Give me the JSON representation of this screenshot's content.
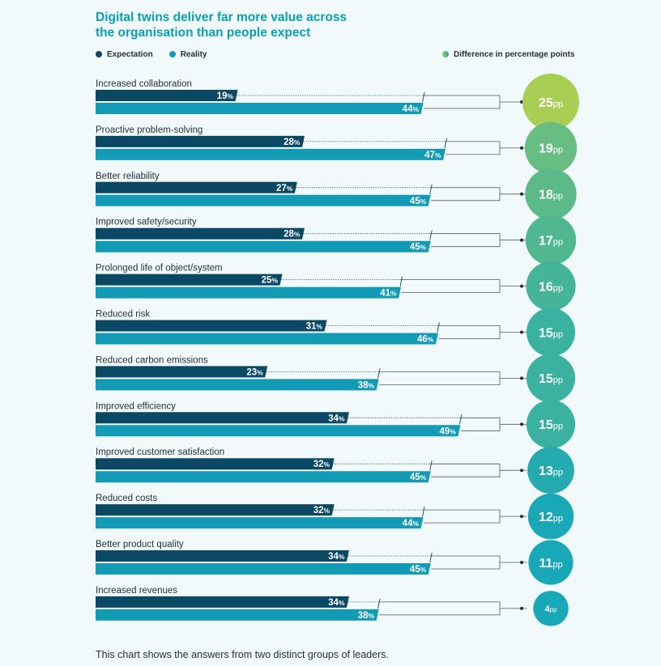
{
  "title_line1": "Digital twins deliver far more value across",
  "title_line2": "the organisation than people expect",
  "legend": {
    "expectation": "Expectation",
    "reality": "Reality",
    "difference": "Difference in percentage points"
  },
  "footnote": "This chart shows the answers from two distinct groups of leaders.",
  "colors": {
    "expectation": "#0b4863",
    "reality": "#139bb5",
    "bubble_high": "#a8cf54",
    "bubble_low": "#19a8b8"
  },
  "chart_data": {
    "type": "bar",
    "title": "Digital twins deliver far more value across the organisation than people expect",
    "unit": "%",
    "diff_unit": "pp",
    "categories": [
      "Increased collaboration",
      "Proactive problem-solving",
      "Better reliability",
      "Improved safety/security",
      "Prolonged life of object/system",
      "Reduced risk",
      "Reduced carbon emissions",
      "Improved efficiency",
      "Improved customer satisfaction",
      "Reduced costs",
      "Better product quality",
      "Increased revenues"
    ],
    "series": [
      {
        "name": "Expectation",
        "values": [
          19,
          28,
          27,
          28,
          25,
          31,
          23,
          34,
          32,
          32,
          34,
          34
        ]
      },
      {
        "name": "Reality",
        "values": [
          44,
          47,
          45,
          45,
          41,
          46,
          38,
          49,
          45,
          44,
          45,
          38
        ]
      }
    ],
    "difference": [
      25,
      19,
      18,
      17,
      16,
      15,
      15,
      15,
      13,
      12,
      11,
      4
    ]
  }
}
